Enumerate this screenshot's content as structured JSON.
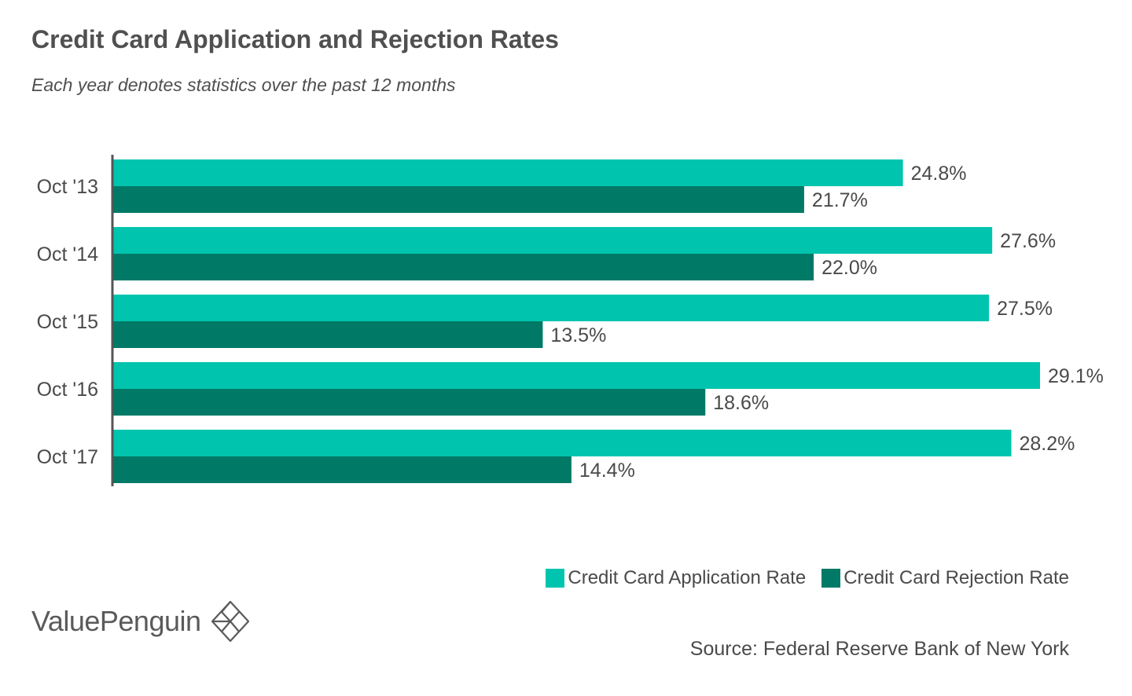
{
  "header": {
    "title": "Credit Card Application and Rejection Rates",
    "subtitle": "Each year denotes statistics over the past 12 months"
  },
  "chart_data": {
    "type": "bar",
    "orientation": "horizontal",
    "title": "Credit Card Application and Rejection Rates",
    "subtitle": "Each year denotes statistics over the past 12 months",
    "categories": [
      "Oct '13",
      "Oct '14",
      "Oct '15",
      "Oct '16",
      "Oct '17"
    ],
    "series": [
      {
        "name": "Credit Card Application Rate",
        "color": "#00c4ae",
        "values": [
          24.8,
          27.6,
          27.5,
          29.1,
          28.2
        ],
        "labels": [
          "24.8%",
          "27.6%",
          "27.5%",
          "29.1%",
          "28.2%"
        ]
      },
      {
        "name": "Credit Card Rejection Rate",
        "color": "#007a66",
        "values": [
          21.7,
          22.0,
          13.5,
          18.6,
          14.4
        ],
        "labels": [
          "21.7%",
          "22.0%",
          "13.5%",
          "18.6%",
          "14.4%"
        ]
      }
    ],
    "xlim": [
      0,
      29.1
    ],
    "xlabel": "",
    "ylabel": "",
    "grid": false,
    "legend_position": "bottom-right"
  },
  "legend": {
    "items": [
      {
        "label": "Credit Card Application Rate",
        "color": "#00c4ae"
      },
      {
        "label": "Credit Card Rejection Rate",
        "color": "#007a66"
      }
    ]
  },
  "footer": {
    "brand": "ValuePenguin",
    "brand_logo_icon": "diamond-logo-icon",
    "source": "Source: Federal Reserve Bank of New York"
  },
  "colors": {
    "application": "#00c4ae",
    "rejection": "#007a66",
    "axis": "#555555",
    "text": "#4a4a4a"
  }
}
